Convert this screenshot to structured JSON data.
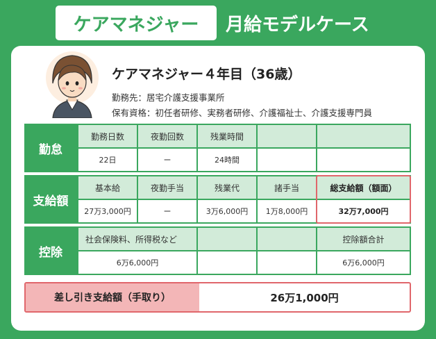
{
  "header": {
    "title_left": "ケアマネジャー",
    "title_right": "月給モデルケース"
  },
  "profile": {
    "name": "ケアマネジャー４年目（36歳）",
    "workplace": "勤務先：居宅介護支援事業所",
    "qualifications": "保有資格：初任者研修、実務者研修、介護福祉士、介護支援専門員"
  },
  "attendance": {
    "label": "勤怠",
    "headers": [
      "勤務日数",
      "夜勤回数",
      "残業時間",
      "",
      ""
    ],
    "values": [
      "22日",
      "ー",
      "24時間",
      "",
      ""
    ]
  },
  "payment": {
    "label": "支給額",
    "headers": [
      "基本給",
      "夜勤手当",
      "残業代",
      "諸手当",
      "総支給額（額面）"
    ],
    "values": [
      "27万3,000円",
      "ー",
      "3万6,000円",
      "1万8,000円",
      "32万7,000円"
    ]
  },
  "deduction": {
    "label": "控除",
    "header_main": "社会保険料、所得税など",
    "header_total": "控除額合計",
    "value_main": "6万6,000円",
    "value_total": "6万6,000円"
  },
  "net": {
    "label": "差し引き支給額（手取り）",
    "value": "26万1,000円"
  },
  "colors": {
    "brand_green": "#3aa75e",
    "light_green": "#d2ebd9",
    "accent_red": "#e0666b",
    "pink": "#f3b6b7"
  }
}
